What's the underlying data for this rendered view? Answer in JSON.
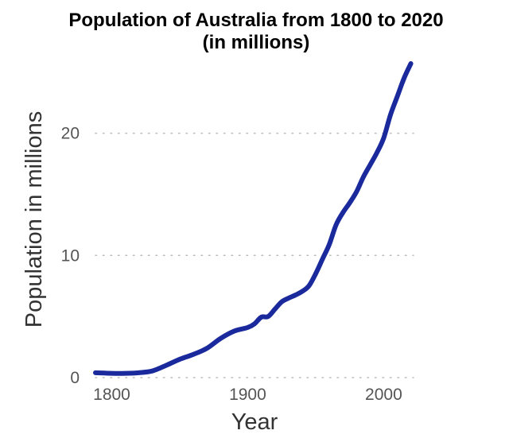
{
  "chart_data": {
    "type": "line",
    "title_line1": "Population of Australia from 1800 to 2020",
    "title_line2": "(in millions)",
    "xlabel": "Year",
    "ylabel": "Population in millions",
    "xlim": [
      1788,
      2022
    ],
    "ylim": [
      0,
      27
    ],
    "x_ticks": [
      "1800",
      "1900",
      "2000"
    ],
    "y_ticks": [
      "0",
      "10",
      "20"
    ],
    "grid": "horizontal dotted",
    "series_color": "#1a2a9c",
    "series": [
      {
        "x": [
          1788,
          1800,
          1810,
          1820,
          1830,
          1840,
          1850,
          1860,
          1870,
          1880,
          1890,
          1900,
          1905,
          1910,
          1915,
          1920,
          1925,
          1930,
          1935,
          1940,
          1945,
          1950,
          1955,
          1960,
          1965,
          1970,
          1975,
          1980,
          1985,
          1990,
          1995,
          2000,
          2005,
          2010,
          2015,
          2020
        ],
        "y": [
          0.4,
          0.35,
          0.35,
          0.4,
          0.55,
          1.0,
          1.5,
          1.9,
          2.4,
          3.2,
          3.8,
          4.1,
          4.4,
          4.95,
          5.0,
          5.6,
          6.2,
          6.5,
          6.75,
          7.05,
          7.5,
          8.5,
          9.7,
          10.9,
          12.5,
          13.5,
          14.3,
          15.2,
          16.4,
          17.4,
          18.4,
          19.6,
          21.5,
          23.0,
          24.5,
          25.7
        ]
      }
    ]
  }
}
